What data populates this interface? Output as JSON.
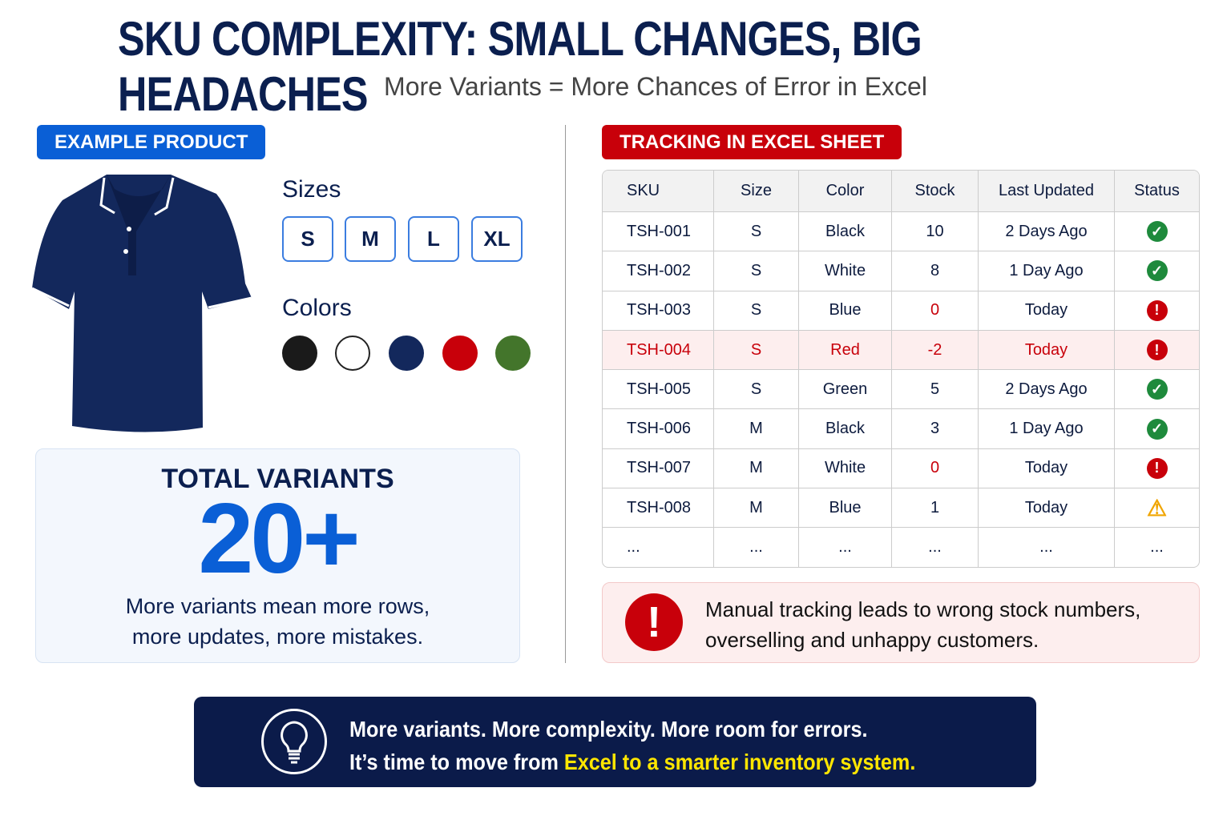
{
  "title": "SKU COMPLEXITY: SMALL CHANGES, BIG HEADACHES",
  "subtitle": "More Variants = More Chances of Error in Excel",
  "product": {
    "badge": "EXAMPLE PRODUCT",
    "image": "navy-polo-shirt",
    "sizes_label": "Sizes",
    "sizes": [
      "S",
      "M",
      "L",
      "XL"
    ],
    "colors_label": "Colors",
    "colors": [
      "#1a1a1a",
      "#ffffff",
      "#13285c",
      "#c8000a",
      "#43752b"
    ]
  },
  "total": {
    "label": "TOTAL VARIANTS",
    "value": "20+",
    "desc1": "More variants mean more rows,",
    "desc2": "more updates, more mistakes."
  },
  "sheet": {
    "badge": "TRACKING IN EXCEL SHEET",
    "headers": [
      "SKU",
      "Size",
      "Color",
      "Stock",
      "Last Updated",
      "Status"
    ],
    "rows": [
      [
        "TSH-001",
        "S",
        "Black",
        "10",
        "2 Days Ago",
        "ok"
      ],
      [
        "TSH-002",
        "S",
        "White",
        "8",
        "1 Day Ago",
        "ok"
      ],
      [
        "TSH-003",
        "S",
        "Blue",
        "0",
        "Today",
        "error"
      ],
      [
        "TSH-004",
        "S",
        "Red",
        "-2",
        "Today",
        "error"
      ],
      [
        "TSH-005",
        "S",
        "Green",
        "5",
        "2 Days Ago",
        "ok"
      ],
      [
        "TSH-006",
        "M",
        "Black",
        "3",
        "1 Day Ago",
        "ok"
      ],
      [
        "TSH-007",
        "M",
        "White",
        "0",
        "Today",
        "error"
      ],
      [
        "TSH-008",
        "M",
        "Blue",
        "1",
        "Today",
        "warning"
      ],
      [
        "...",
        "...",
        "...",
        "...",
        "...",
        "..."
      ]
    ],
    "highlighted_row": "TSH-004"
  },
  "warning": {
    "line1": "Manual tracking leads to wrong stock numbers,",
    "line2": "overselling and unhappy customers."
  },
  "banner": {
    "line1": "More variants. More complexity. More room for errors.",
    "line2_prefix": "It’s time to move from ",
    "line2_highlight": "Excel to a smarter inventory system."
  },
  "colors": {
    "navy": "#0b1f4f",
    "blue": "#0a5fd6",
    "red": "#c8000a",
    "green": "#1e8a3c",
    "amber": "#f0a500",
    "yellow": "#ffe600"
  }
}
